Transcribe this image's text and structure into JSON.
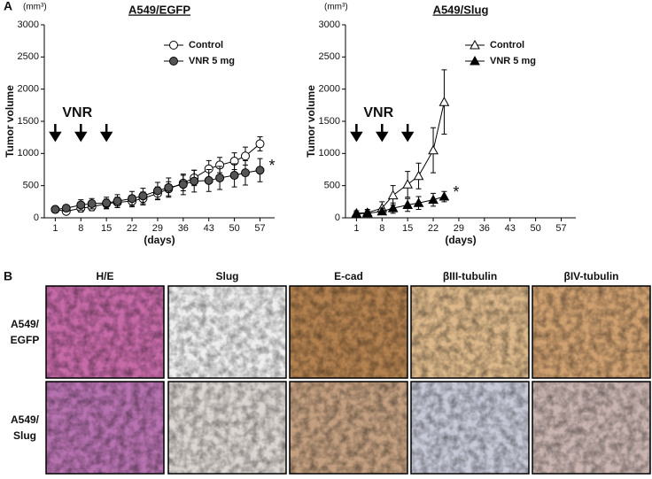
{
  "panel_labels": [
    "A",
    "B"
  ],
  "chart_data": [
    {
      "type": "line",
      "title": "A549/EGFP",
      "unit": "(mm³)",
      "ylabel": "Tumor volume",
      "xlabel": "(days)",
      "x": [
        1,
        4,
        8,
        11,
        15,
        18,
        22,
        25,
        29,
        32,
        36,
        39,
        43,
        46,
        50,
        53,
        57
      ],
      "series": [
        {
          "name": "Control",
          "color": "#000000",
          "marker": "circle",
          "marker_fill": "#ffffff",
          "values": [
            130,
            100,
            150,
            170,
            220,
            240,
            260,
            300,
            380,
            450,
            540,
            620,
            760,
            820,
            880,
            960,
            1150
          ],
          "errors": [
            40,
            40,
            60,
            60,
            70,
            80,
            90,
            100,
            100,
            110,
            120,
            120,
            130,
            120,
            130,
            140,
            110
          ]
        },
        {
          "name": "VNR 5 mg",
          "color": "#000000",
          "marker": "circle",
          "marker_fill": "#555555",
          "values": [
            130,
            150,
            200,
            220,
            230,
            260,
            300,
            340,
            420,
            470,
            520,
            570,
            580,
            620,
            660,
            700,
            740
          ],
          "errors": [
            40,
            50,
            80,
            80,
            90,
            100,
            110,
            120,
            130,
            150,
            160,
            170,
            170,
            180,
            180,
            190,
            180
          ]
        }
      ],
      "xlim": [
        -2,
        61
      ],
      "xticks": [
        1,
        8,
        15,
        22,
        29,
        36,
        43,
        50,
        57
      ],
      "ylim": [
        0,
        3000
      ],
      "yticks": [
        0,
        500,
        1000,
        1500,
        2000,
        2500,
        3000
      ],
      "legend": "upper right",
      "annotations": {
        "text": "VNR",
        "arrow_days": [
          1,
          8,
          15
        ],
        "significance": "*"
      }
    },
    {
      "type": "line",
      "title": "A549/Slug",
      "unit": "(mm³)",
      "ylabel": "Tumor volume",
      "xlabel": "(days)",
      "x": [
        1,
        4,
        8,
        11,
        15,
        18,
        22,
        25
      ],
      "series": [
        {
          "name": "Control",
          "color": "#000000",
          "marker": "triangle",
          "marker_fill": "#ffffff",
          "values": [
            70,
            80,
            150,
            350,
            520,
            650,
            1050,
            1800
          ],
          "errors": [
            40,
            50,
            100,
            150,
            200,
            200,
            350,
            500
          ]
        },
        {
          "name": "VNR 5 mg",
          "color": "#000000",
          "marker": "triangle",
          "marker_fill": "#000000",
          "values": [
            60,
            70,
            100,
            150,
            200,
            230,
            280,
            330
          ],
          "errors": [
            30,
            40,
            50,
            80,
            100,
            100,
            100,
            80
          ]
        }
      ],
      "xlim": [
        -2,
        61
      ],
      "xticks": [
        1,
        8,
        15,
        22,
        29,
        36,
        43,
        50,
        57
      ],
      "ylim": [
        0,
        3000
      ],
      "yticks": [
        0,
        500,
        1000,
        1500,
        2000,
        2500,
        3000
      ],
      "legend": "upper right",
      "annotations": {
        "text": "VNR",
        "arrow_days": [
          1,
          8,
          15
        ],
        "significance": "*"
      }
    }
  ],
  "panel_b": {
    "columns": [
      "H/E",
      "Slug",
      "E-cad",
      "βIII-tubulin",
      "βIV-tubulin"
    ],
    "rows": [
      [
        "A549/",
        "EGFP"
      ],
      [
        "A549/",
        "Slug"
      ]
    ]
  }
}
